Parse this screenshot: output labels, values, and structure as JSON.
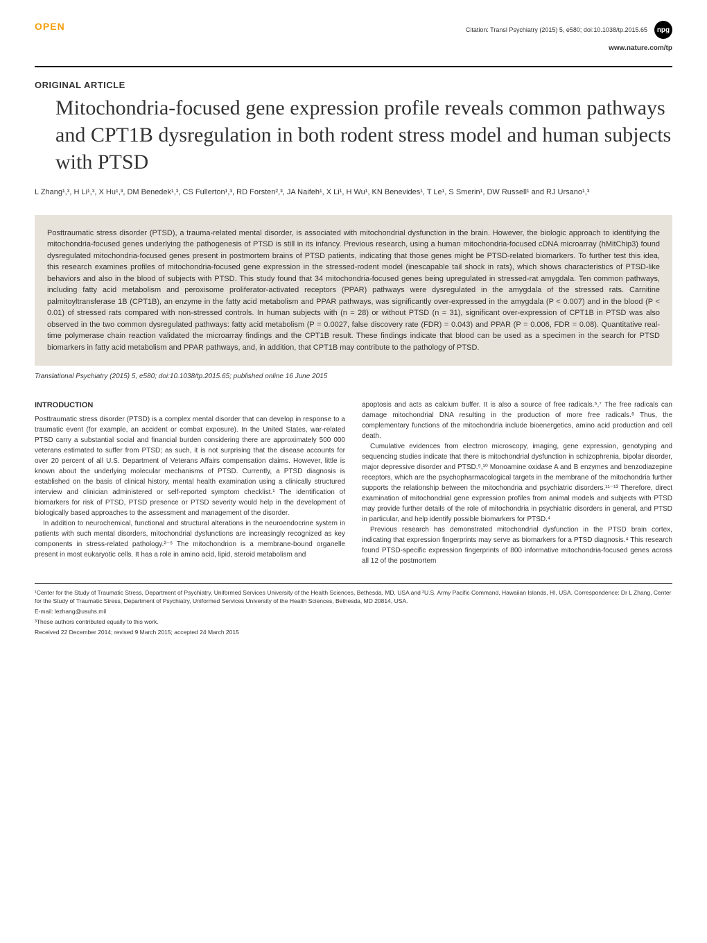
{
  "header": {
    "open_badge": "OPEN",
    "citation": "Citation: Transl Psychiatry (2015) 5, e580; doi:10.1038/tp.2015.65",
    "npg": "npg",
    "website": "www.nature.com/tp"
  },
  "article": {
    "type": "ORIGINAL ARTICLE",
    "title": "Mitochondria-focused gene expression profile reveals common pathways and CPT1B dysregulation in both rodent stress model and human subjects with PTSD",
    "authors": "L Zhang¹,³, H Li¹,³, X Hu¹,³, DM Benedek¹,³, CS Fullerton¹,³, RD Forsten²,³, JA Naifeh¹, X Li¹, H Wu¹, KN Benevides¹, T Le¹, S Smerin¹, DW Russell¹ and RJ Ursano¹,³"
  },
  "abstract": "Posttraumatic stress disorder (PTSD), a trauma-related mental disorder, is associated with mitochondrial dysfunction in the brain. However, the biologic approach to identifying the mitochondria-focused genes underlying the pathogenesis of PTSD is still in its infancy. Previous research, using a human mitochondria-focused cDNA microarray (hMitChip3) found dysregulated mitochondria-focused genes present in postmortem brains of PTSD patients, indicating that those genes might be PTSD-related biomarkers. To further test this idea, this research examines profiles of mitochondria-focused gene expression in the stressed-rodent model (inescapable tail shock in rats), which shows characteristics of PTSD-like behaviors and also in the blood of subjects with PTSD. This study found that 34 mitochondria-focused genes being upregulated in stressed-rat amygdala. Ten common pathways, including fatty acid metabolism and peroxisome proliferator-activated receptors (PPAR) pathways were dysregulated in the amygdala of the stressed rats. Carnitine palmitoyltransferase 1B (CPT1B), an enzyme in the fatty acid metabolism and PPAR pathways, was significantly over-expressed in the amygdala (P < 0.007) and in the blood (P < 0.01) of stressed rats compared with non-stressed controls. In human subjects with (n = 28) or without PTSD (n = 31), significant over-expression of CPT1B in PTSD was also observed in the two common dysregulated pathways: fatty acid metabolism (P = 0.0027, false discovery rate (FDR) = 0.043) and PPAR (P = 0.006, FDR = 0.08). Quantitative real-time polymerase chain reaction validated the microarray findings and the CPT1B result. These findings indicate that blood can be used as a specimen in the search for PTSD biomarkers in fatty acid metabolism and PPAR pathways, and, in addition, that CPT1B may contribute to the pathology of PTSD.",
  "journal_line": "Translational Psychiatry (2015) 5, e580; doi:10.1038/tp.2015.65; published online 16 June 2015",
  "body": {
    "intro_heading": "INTRODUCTION",
    "col1_p1": "Posttraumatic stress disorder (PTSD) is a complex mental disorder that can develop in response to a traumatic event (for example, an accident or combat exposure). In the United States, war-related PTSD carry a substantial social and financial burden considering there are approximately 500 000 veterans estimated to suffer from PTSD; as such, it is not surprising that the disease accounts for over 20 percent of all U.S. Department of Veterans Affairs compensation claims. However, little is known about the underlying molecular mechanisms of PTSD. Currently, a PTSD diagnosis is established on the basis of clinical history, mental health examination using a clinically structured interview and clinician administered or self-reported symptom checklist.¹ The identification of biomarkers for risk of PTSD, PTSD presence or PTSD severity would help in the development of biologically based approaches to the assessment and management of the disorder.",
    "col1_p2": "In addition to neurochemical, functional and structural alterations in the neuroendocrine system in patients with such mental disorders, mitochondrial dysfunctions are increasingly recognized as key components in stress-related pathology.²⁻⁵ The mitochondrion is a membrane-bound organelle present in most eukaryotic cells. It has a role in amino acid, lipid, steroid metabolism and",
    "col2_p1": "apoptosis and acts as calcium buffer. It is also a source of free radicals.⁶,⁷ The free radicals can damage mitochondrial DNA resulting in the production of more free radicals.⁸ Thus, the complementary functions of the mitochondria include bioenergetics, amino acid production and cell death.",
    "col2_p2": "Cumulative evidences from electron microscopy, imaging, gene expression, genotyping and sequencing studies indicate that there is mitochondrial dysfunction in schizophrenia, bipolar disorder, major depressive disorder and PTSD.⁹,¹⁰ Monoamine oxidase A and B enzymes and benzodiazepine receptors, which are the psychopharmacological targets in the membrane of the mitochondria further supports the relationship between the mitochondria and psychiatric disorders.¹¹⁻¹³ Therefore, direct examination of mitochondrial gene expression profiles from animal models and subjects with PTSD may provide further details of the role of mitochondria in psychiatric disorders in general, and PTSD in particular, and help identify possible biomarkers for PTSD.⁴",
    "col2_p3": "Previous research has demonstrated mitochondrial dysfunction in the PTSD brain cortex, indicating that expression fingerprints may serve as biomarkers for a PTSD diagnosis.⁴ This research found PTSD-specific expression fingerprints of 800 informative mitochondria-focused genes across all 12 of the postmortem"
  },
  "footnotes": {
    "affiliation": "¹Center for the Study of Traumatic Stress, Department of Psychiatry, Uniformed Services University of the Health Sciences, Bethesda, MD, USA and ²U.S. Army Pacific Command, Hawaiian Islands, HI, USA. Correspondence: Dr L Zhang, Center for the Study of Traumatic Stress, Department of Psychiatry, Uniformed Services University of the Health Sciences, Bethesda, MD 20814, USA.",
    "email": "E-mail: lezhang@usuhs.mil",
    "equal": "³These authors contributed equally to this work.",
    "dates": "Received 22 December 2014; revised 9 March 2015; accepted 24 March 2015"
  },
  "colors": {
    "open_badge": "#f59e0b",
    "abstract_bg": "#e8e3da",
    "text": "#333333",
    "background": "#ffffff",
    "npg_bg": "#000000"
  }
}
